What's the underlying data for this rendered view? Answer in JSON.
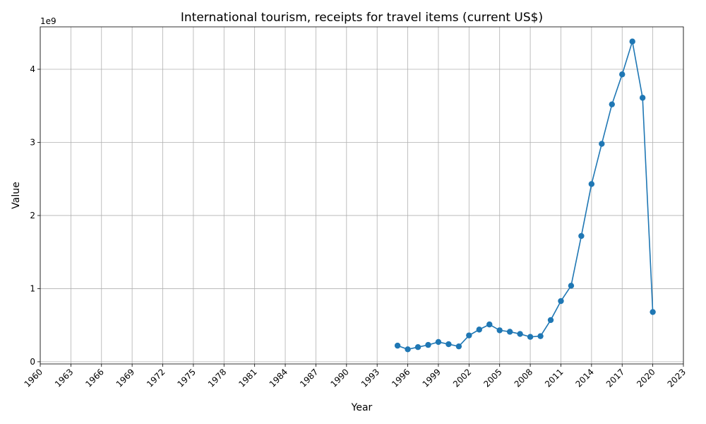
{
  "chart_data": {
    "type": "line",
    "title": "International tourism, receipts for travel items (current US$)",
    "xlabel": "Year",
    "ylabel": "Value",
    "y_offset_label": "1e9",
    "xlim": [
      1960,
      2023
    ],
    "ylim": [
      -0.03,
      4.58
    ],
    "x_ticks": [
      1960,
      1963,
      1966,
      1969,
      1972,
      1975,
      1978,
      1981,
      1984,
      1987,
      1990,
      1993,
      1996,
      1999,
      2002,
      2005,
      2008,
      2011,
      2014,
      2017,
      2020,
      2023
    ],
    "y_ticks": [
      0,
      1,
      2,
      3,
      4
    ],
    "grid": true,
    "series": [
      {
        "color": "#1f77b4",
        "x": [
          1995,
          1996,
          1997,
          1998,
          1999,
          2000,
          2001,
          2002,
          2003,
          2004,
          2005,
          2006,
          2007,
          2008,
          2009,
          2010,
          2011,
          2012,
          2013,
          2014,
          2015,
          2016,
          2017,
          2018,
          2019,
          2020
        ],
        "y": [
          0.22,
          0.17,
          0.2,
          0.23,
          0.27,
          0.24,
          0.21,
          0.36,
          0.44,
          0.51,
          0.43,
          0.41,
          0.38,
          0.34,
          0.35,
          0.57,
          0.83,
          1.04,
          1.72,
          2.43,
          2.98,
          3.52,
          3.93,
          4.38,
          3.61,
          0.68
        ]
      }
    ]
  }
}
